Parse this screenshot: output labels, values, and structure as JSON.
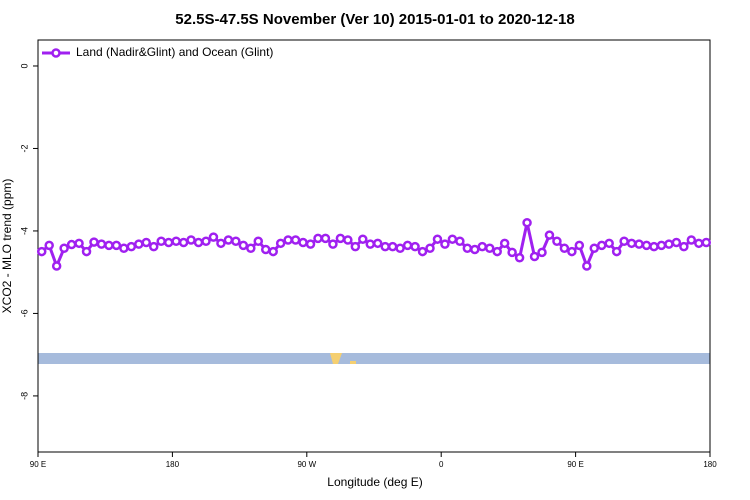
{
  "chart_data": {
    "type": "line",
    "title": "52.5S-47.5S November (Ver 10)   2015-01-01 to 2020-12-18",
    "x_label": "Longitude (deg E)",
    "y_label": "XCO2 - MLO trend (ppm)",
    "xlim": [
      90,
      540
    ],
    "xticks": [
      {
        "value": 90,
        "label": "90 E"
      },
      180,
      {
        "value": 270,
        "label": "90 W"
      },
      {
        "value": 360,
        "label": "0"
      },
      {
        "value": 450,
        "label": "90 E"
      },
      {
        "value": 540,
        "label": "180"
      }
    ],
    "ylim": [
      -9.36,
      0.63
    ],
    "yticks": [
      0,
      -2,
      -4,
      -6,
      -8
    ],
    "legend": "top-left",
    "series": [
      {
        "name": "Land (Nadir&Glint) and Ocean (Glint)",
        "color": "#a020f0",
        "x": [
          92.5,
          97.5,
          102.5,
          107.5,
          112.5,
          117.5,
          122.5,
          127.5,
          132.5,
          137.5,
          142.5,
          147.5,
          152.5,
          157.5,
          162.5,
          167.5,
          172.5,
          177.5,
          182.5,
          187.5,
          192.5,
          197.5,
          202.5,
          207.5,
          212.5,
          217.5,
          222.5,
          227.5,
          232.5,
          237.5,
          242.5,
          247.5,
          252.5,
          257.5,
          262.5,
          267.5,
          272.5,
          277.5,
          282.5,
          287.5,
          292.5,
          297.5,
          302.5,
          307.5,
          312.5,
          317.5,
          322.5,
          327.5,
          332.5,
          337.5,
          342.5,
          347.5,
          352.5,
          357.5,
          362.5,
          367.5,
          372.5,
          377.5,
          382.5,
          387.5,
          392.5,
          397.5,
          402.5,
          407.5,
          412.5,
          417.5,
          422.5,
          427.5,
          432.5,
          437.5,
          442.5,
          447.5,
          452.5,
          457.5,
          462.5,
          467.5,
          472.5,
          477.5,
          482.5,
          487.5,
          492.5,
          497.5,
          502.5,
          507.5,
          512.5,
          517.5,
          522.5,
          527.5,
          532.5,
          537.5
        ],
        "values": [
          -4.5,
          -4.35,
          -4.85,
          -4.42,
          -4.33,
          -4.3,
          -4.5,
          -4.27,
          -4.32,
          -4.35,
          -4.35,
          -4.42,
          -4.38,
          -4.32,
          -4.28,
          -4.38,
          -4.25,
          -4.28,
          -4.25,
          -4.28,
          -4.22,
          -4.28,
          -4.25,
          -4.15,
          -4.3,
          -4.22,
          -4.25,
          -4.35,
          -4.42,
          -4.25,
          -4.45,
          -4.5,
          -4.3,
          -4.22,
          -4.22,
          -4.28,
          -4.32,
          -4.18,
          -4.18,
          -4.32,
          -4.18,
          -4.22,
          -4.38,
          -4.2,
          -4.32,
          -4.3,
          -4.38,
          -4.38,
          -4.42,
          -4.35,
          -4.38,
          -4.5,
          -4.42,
          -4.2,
          -4.32,
          -4.2,
          -4.25,
          -4.42,
          -4.45,
          -4.38,
          -4.42,
          -4.5,
          -4.3,
          -4.52,
          -4.65,
          -3.8,
          -4.62,
          -4.52,
          -4.1,
          -4.25,
          -4.42,
          -4.5,
          -4.35,
          -4.85,
          -4.42,
          -4.35,
          -4.3,
          -4.5,
          -4.25,
          -4.3,
          -4.32,
          -4.35,
          -4.38,
          -4.35,
          -4.32,
          -4.28,
          -4.38,
          -4.22,
          -4.3,
          -4.28
        ]
      }
    ]
  }
}
